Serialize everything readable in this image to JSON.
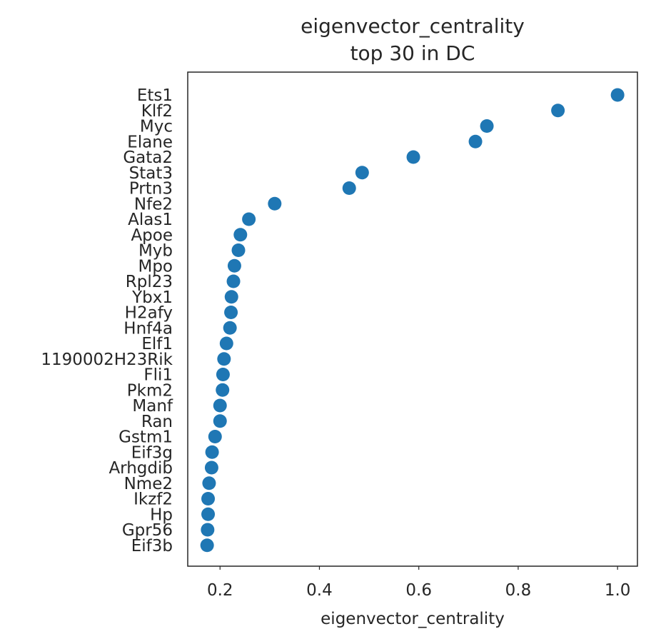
{
  "chart_data": {
    "type": "scatter",
    "title_lines": [
      "eigenvector_centrality",
      "top 30 in DC"
    ],
    "xlabel": "eigenvector_centrality",
    "xlim": [
      0.135,
      1.04
    ],
    "xticks": [
      0.2,
      0.4,
      0.6,
      0.8,
      1.0
    ],
    "xtick_labels": [
      "0.2",
      "0.4",
      "0.6",
      "0.8",
      "1.0"
    ],
    "grid": false,
    "marker_color": "#1f77b4",
    "genes": [
      "Ets1",
      "Klf2",
      "Myc",
      "Elane",
      "Gata2",
      "Stat3",
      "Prtn3",
      "Nfe2",
      "Alas1",
      "Apoe",
      "Myb",
      "Mpo",
      "Rpl23",
      "Ybx1",
      "H2afy",
      "Hnf4a",
      "Elf1",
      "1190002H23Rik",
      "Fli1",
      "Pkm2",
      "Manf",
      "Ran",
      "Gstm1",
      "Eif3g",
      "Arhgdib",
      "Nme2",
      "Ikzf2",
      "Hp",
      "Gpr56",
      "Eif3b"
    ],
    "values": [
      1.0,
      0.88,
      0.737,
      0.714,
      0.589,
      0.486,
      0.46,
      0.31,
      0.258,
      0.241,
      0.237,
      0.229,
      0.227,
      0.223,
      0.222,
      0.22,
      0.213,
      0.208,
      0.206,
      0.205,
      0.2,
      0.2,
      0.19,
      0.184,
      0.183,
      0.178,
      0.176,
      0.176,
      0.175,
      0.174
    ]
  }
}
